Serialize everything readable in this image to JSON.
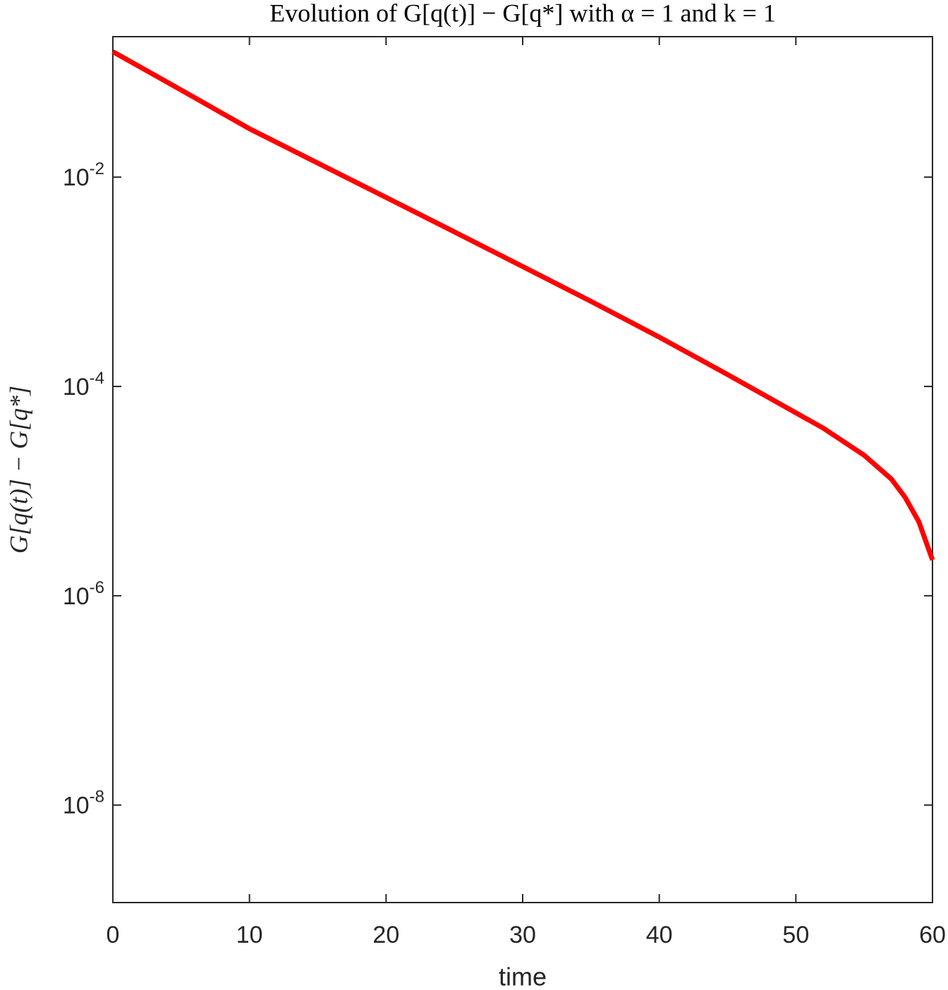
{
  "chart_data": {
    "type": "line",
    "title": "Evolution of G[q(t)] − G[q*] with α = 1 and k = 1",
    "xlabel": "time",
    "ylabel": "G[q(t)] − G[q*]",
    "log_y": true,
    "x": [
      0,
      5,
      10,
      20,
      25,
      30,
      35,
      40,
      45,
      50,
      52,
      55,
      57,
      58,
      59,
      60
    ],
    "series": [
      {
        "name": "G[q(t)] − G[q*]",
        "color": "#ff0000",
        "values": [
          0.158,
          0.068,
          0.029,
          0.0064,
          0.003,
          0.0014,
          0.00065,
          0.000296,
          0.00013,
          5.6e-05,
          4e-05,
          2.2e-05,
          1.3e-05,
          8.7e-06,
          5.1e-06,
          2.2e-06
        ]
      }
    ],
    "xlim": [
      0,
      60
    ],
    "xticks": [
      0,
      10,
      20,
      30,
      40,
      50,
      60
    ],
    "ylim": [
      1.17e-09,
      0.22
    ],
    "yticks": [
      {
        "value": 0.01,
        "label": {
          "base": "10",
          "exponent": "-2"
        }
      },
      {
        "value": 0.0001,
        "label": {
          "base": "10",
          "exponent": "-4"
        }
      },
      {
        "value": 1e-06,
        "label": {
          "base": "10",
          "exponent": "-6"
        }
      },
      {
        "value": 1e-08,
        "label": {
          "base": "10",
          "exponent": "-8"
        }
      }
    ]
  }
}
